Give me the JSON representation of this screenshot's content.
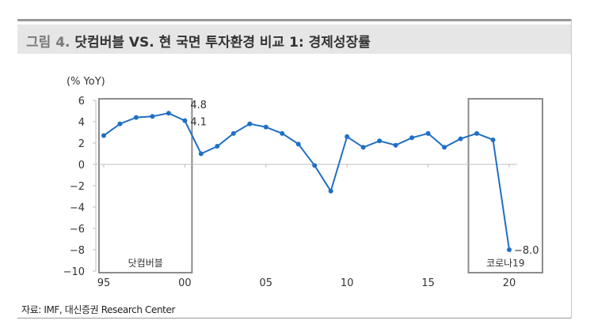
{
  "header": {
    "fig_label": "그림 4.",
    "title": "닷컴버블 VS. 현 국면 투자환경 비교 1: 경제성장률"
  },
  "source": "자료: IMF, 대신증권 Research Center",
  "colors": {
    "line": "#1f6fc5",
    "box": "#8c8c8c",
    "axis": "#bfbfbf",
    "text": "#333333"
  },
  "chart_data": {
    "type": "line",
    "ylabel": "(% YoY)",
    "ylim": [
      -10,
      6
    ],
    "yticks": [
      6,
      4,
      2,
      0,
      -2,
      -4,
      -6,
      -8,
      -10
    ],
    "ytick_labels": [
      "6",
      "4",
      "2",
      "0",
      "−2",
      "−4",
      "−6",
      "−8",
      "−10"
    ],
    "xlim": [
      1995,
      2020
    ],
    "xticks": [
      1995,
      2000,
      2005,
      2010,
      2015,
      2020
    ],
    "xtick_labels": [
      "95",
      "00",
      "05",
      "10",
      "15",
      "20"
    ],
    "grid": false,
    "series": [
      {
        "x": [
          1995,
          1996,
          1997,
          1998,
          1999,
          2000,
          2001,
          2002,
          2003,
          2004,
          2005,
          2006,
          2007,
          2008,
          2009,
          2010,
          2011,
          2012,
          2013,
          2014,
          2015,
          2016,
          2017,
          2018,
          2019,
          2020
        ],
        "values": [
          2.7,
          3.8,
          4.4,
          4.5,
          4.8,
          4.1,
          1.0,
          1.7,
          2.9,
          3.8,
          3.5,
          2.9,
          1.9,
          -0.1,
          -2.5,
          2.6,
          1.6,
          2.2,
          1.8,
          2.5,
          2.9,
          1.6,
          2.4,
          2.9,
          2.3,
          -8.0
        ]
      }
    ],
    "data_labels": [
      {
        "x": 2000,
        "y": 4.8,
        "text": "4.8"
      },
      {
        "x": 2000,
        "y": 4.1,
        "text": "4.1"
      },
      {
        "x": 2020,
        "y": -8.0,
        "text": "−8.0"
      }
    ],
    "annotations": [
      {
        "label": "닷컴버블",
        "x_from": 1995,
        "x_to": 2000
      },
      {
        "label": "코로나19",
        "x_from": 2019,
        "x_to": 2020
      }
    ]
  }
}
